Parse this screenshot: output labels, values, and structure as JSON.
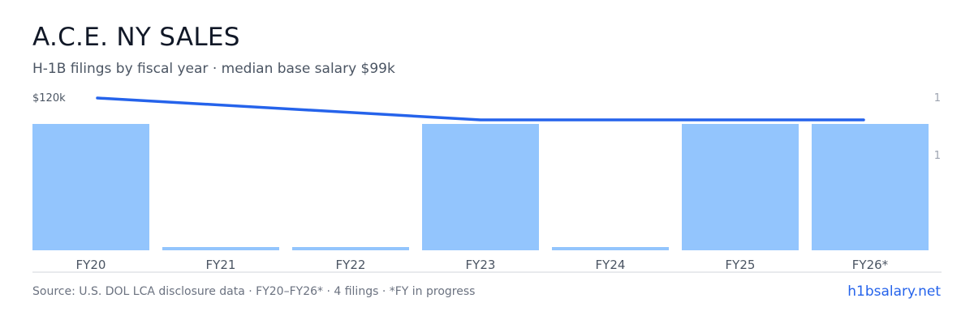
{
  "header": {
    "title": "A.C.E. NY SALES",
    "subtitle": "H-1B filings by fiscal year · median base salary $99k"
  },
  "footer": {
    "source": "Source: U.S. DOL LCA disclosure data · FY20–FY26* · 4 filings · *FY in progress",
    "brand": "h1bsalary.net"
  },
  "colors": {
    "bar": "#93c5fd",
    "line": "#2563eb",
    "baseline": "#d1d5db"
  },
  "chart_data": {
    "type": "bar",
    "categories": [
      "FY20",
      "FY21",
      "FY22",
      "FY23",
      "FY24",
      "FY25",
      "FY26*"
    ],
    "series": [
      {
        "kind": "bar",
        "axis": "right",
        "values": [
          1,
          0,
          0,
          1,
          0,
          1,
          1
        ]
      },
      {
        "kind": "line",
        "axis": "left",
        "points": [
          {
            "category": "FY20",
            "value": 120000
          },
          {
            "category": "FY23",
            "value": 99000
          },
          {
            "category": "FY26*",
            "value": 99000
          }
        ]
      }
    ],
    "y_left": {
      "range": [
        0,
        120000
      ],
      "tick_labels": [
        "$120k"
      ]
    },
    "y_right": {
      "range": [
        0,
        1.5
      ],
      "tick_labels": [
        "1",
        "1"
      ]
    },
    "grid": false,
    "legend": "none"
  }
}
